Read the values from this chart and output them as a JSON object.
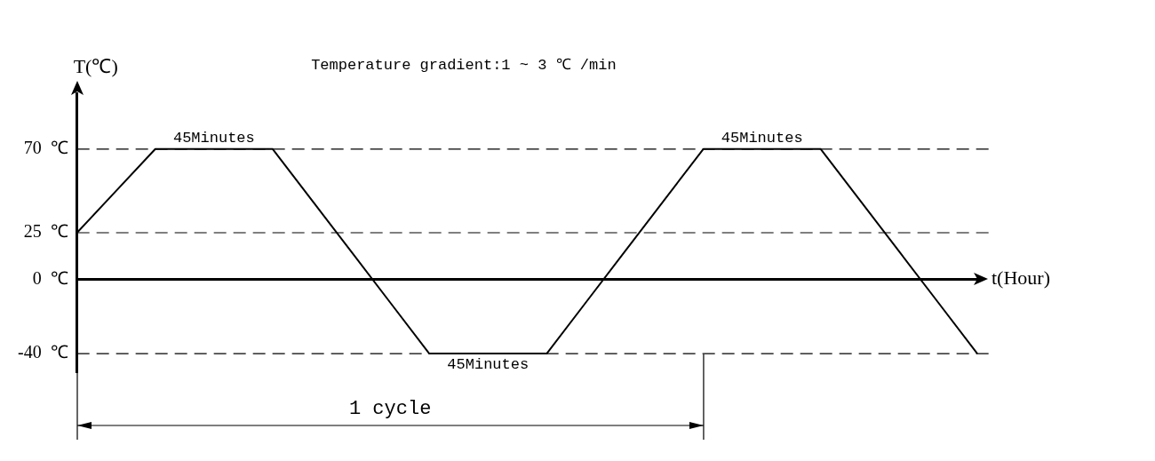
{
  "chart_data": {
    "type": "line",
    "xlabel": "t(Hour)",
    "ylabel": "T(℃)",
    "categories": [
      null,
      null,
      null,
      null,
      null,
      null,
      null,
      null,
      null,
      null,
      null,
      null,
      null,
      null,
      null,
      null,
      null,
      null,
      null,
      null,
      null,
      null,
      null,
      null
    ],
    "series": [
      {
        "color": "#000000",
        "values": [
          25,
          47.5,
          70,
          70,
          70,
          70,
          42.5,
          15,
          -12.5,
          -40,
          -40,
          -40,
          -40,
          -12.5,
          15,
          42.5,
          70,
          70,
          70,
          70,
          42.5,
          15,
          -12.5,
          -40
        ]
      }
    ],
    "ylim": [
      -50,
      100
    ],
    "yticks": [
      {
        "value": -40,
        "label": "-40  ℃"
      },
      {
        "value": 0,
        "label": "0  ℃"
      },
      {
        "value": 25,
        "label": "25  ℃"
      },
      {
        "value": 70,
        "label": "70  ℃"
      }
    ],
    "tick_labels": "y",
    "grid": false,
    "legend": false,
    "marker": "none",
    "line_style": "solid",
    "ref_lines": [
      {
        "axis": "y",
        "value": 70,
        "line_style": "dashed"
      },
      {
        "axis": "y",
        "value": 25,
        "line_style": "dashed"
      },
      {
        "axis": "y",
        "value": -40,
        "line_style": "dashed"
      }
    ],
    "annotations": [
      {
        "text": "45Minutes",
        "y": 70
      },
      {
        "text": "45Minutes",
        "y": -40
      },
      {
        "text": "45Minutes",
        "y": 70
      },
      "Temperature gradient:1 ~ 3 ℃ /min",
      "1 cycle"
    ]
  }
}
